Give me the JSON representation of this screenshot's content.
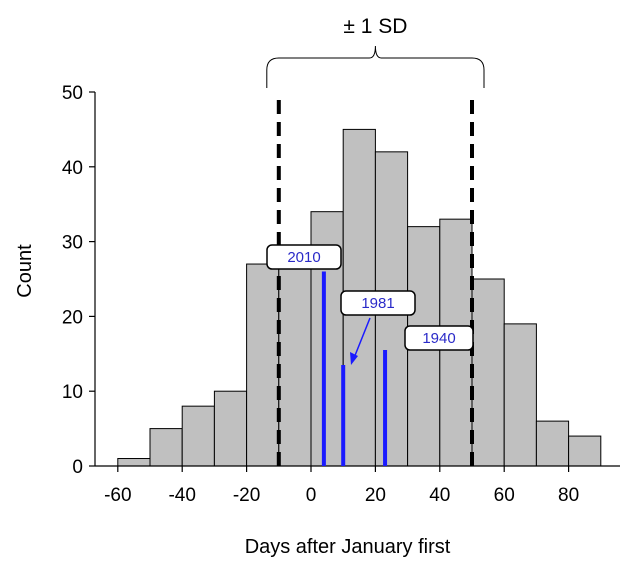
{
  "chart_data": {
    "type": "bar",
    "title": "",
    "xlabel": "Days after January first",
    "ylabel": "Count",
    "xlim": [
      -65,
      92
    ],
    "ylim": [
      0,
      50
    ],
    "xticks": [
      -60,
      -40,
      -20,
      0,
      20,
      40,
      60,
      80
    ],
    "xtick_labels": [
      "-60",
      "-40",
      "-20",
      "0",
      "20",
      "40",
      "60",
      "80"
    ],
    "yticks": [
      0,
      10,
      20,
      30,
      40,
      50
    ],
    "ytick_labels": [
      "0",
      "10",
      "20",
      "30",
      "40",
      "50"
    ],
    "bin_width": 10,
    "bins": [
      {
        "start": -60,
        "end": -50,
        "count": 1
      },
      {
        "start": -50,
        "end": -40,
        "count": 5
      },
      {
        "start": -40,
        "end": -30,
        "count": 8
      },
      {
        "start": -30,
        "end": -20,
        "count": 10
      },
      {
        "start": -20,
        "end": -10,
        "count": 27
      },
      {
        "start": -10,
        "end": 0,
        "count": 27
      },
      {
        "start": 0,
        "end": 10,
        "count": 34
      },
      {
        "start": 10,
        "end": 20,
        "count": 45
      },
      {
        "start": 20,
        "end": 30,
        "count": 42
      },
      {
        "start": 30,
        "end": 40,
        "count": 32
      },
      {
        "start": 40,
        "end": 50,
        "count": 33
      },
      {
        "start": 50,
        "end": 60,
        "count": 25
      },
      {
        "start": 60,
        "end": 70,
        "count": 19
      },
      {
        "start": 70,
        "end": 80,
        "count": 6
      },
      {
        "start": 80,
        "end": 90,
        "count": 4
      }
    ],
    "bar_color": "#c0c0c0",
    "sd_lines": {
      "x": [
        -10,
        50
      ],
      "label": "± 1 SD"
    },
    "year_markers": [
      {
        "label": "2010",
        "x": 4,
        "height": 26
      },
      {
        "label": "1981",
        "x": 10,
        "height": 13.5
      },
      {
        "label": "1940",
        "x": 23,
        "height": 15.5
      }
    ],
    "marker_color": "#1a1aff"
  }
}
